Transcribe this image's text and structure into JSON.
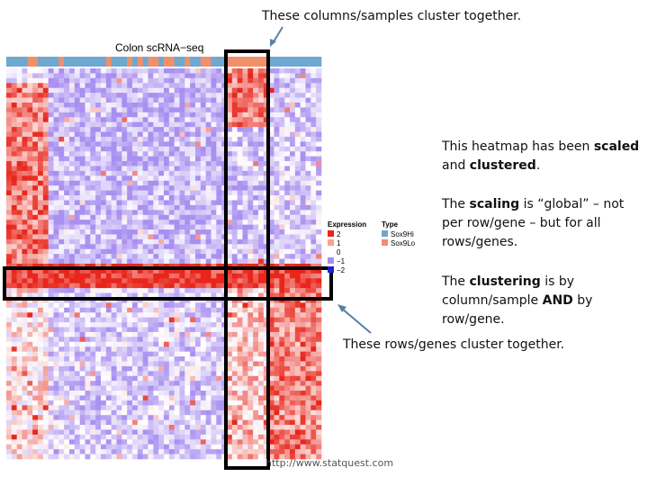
{
  "captions": {
    "top": "These columns/samples cluster together.",
    "bottom": "These rows/genes cluster together.",
    "scaled_prefix": "This heatmap has been ",
    "scaled_b1": "scaled",
    "scaled_mid": " and ",
    "scaled_b2": "clustered",
    "scaled_end": ".",
    "scaling_prefix": "The ",
    "scaling_b": "scaling",
    "scaling_rest": " is “global” – not per row/gene – but for all rows/genes.",
    "clustering_prefix": "The ",
    "clustering_b": "clustering",
    "clustering_mid": " is by column/sample ",
    "clustering_b2": "AND",
    "clustering_end": " by row/gene."
  },
  "watermark": "http://www.statquest.com",
  "chart_data": {
    "type": "heatmap",
    "title": "Colon scRNA−seq",
    "legend_expression": {
      "title": "Expression",
      "entries": [
        {
          "label": "2",
          "value": 2,
          "color": "#e8261b"
        },
        {
          "label": "1",
          "value": 1,
          "color": "#f4a58c"
        },
        {
          "label": "0",
          "value": 0,
          "color": "#ffffff"
        },
        {
          "label": "−1",
          "value": -1,
          "color": "#a98ff0"
        },
        {
          "label": "−2",
          "value": -2,
          "color": "#2020d0"
        }
      ]
    },
    "legend_type": {
      "title": "Type",
      "entries": [
        {
          "label": "Sox9Hi",
          "color": "#6ea8d0"
        },
        {
          "label": "Sox9Lo",
          "color": "#f0906a"
        }
      ]
    },
    "n_rows": 80,
    "n_cols": 60,
    "scale_range": [
      -2,
      2
    ],
    "column_clusters": [
      {
        "type": "Sox9Hi",
        "start": 0,
        "end": 41
      },
      {
        "type": "Sox9Lo",
        "start": 42,
        "end": 49
      },
      {
        "type": "Sox9Hi",
        "start": 50,
        "end": 59
      }
    ],
    "row_clusters": [
      {
        "start": 0,
        "end": 39
      },
      {
        "start": 40,
        "end": 44
      },
      {
        "start": 45,
        "end": 79
      }
    ],
    "colors": {
      "low": "#a98ff0",
      "mid": "#ffffff",
      "high": "#e8261b",
      "box": "#000000"
    }
  }
}
